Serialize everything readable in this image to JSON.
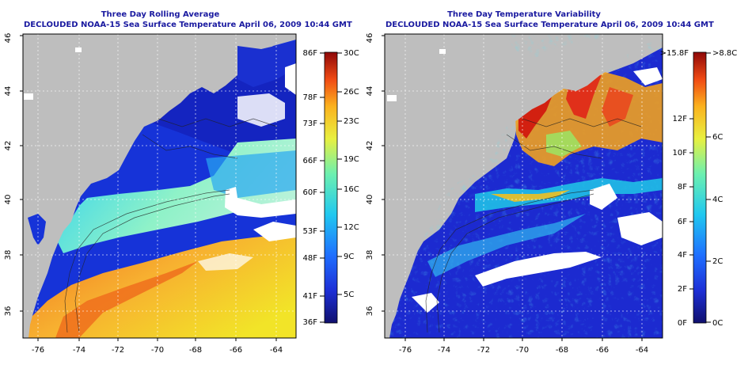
{
  "panels": [
    {
      "id": "left",
      "title": "Three Day Rolling Average",
      "subtitle": "DECLOUDED NOAA-15 Sea Surface Temperature April 06, 2009 10:44 GMT",
      "x_ticks": [
        "-76",
        "-74",
        "-72",
        "-70",
        "-68",
        "-66",
        "-64"
      ],
      "y_ticks": [
        "36",
        "38",
        "40",
        "42",
        "44",
        "46"
      ],
      "colorbar": {
        "left_labels": [
          "86F",
          "78F",
          "73F",
          "66F",
          "60F",
          "53F",
          "48F",
          "41F",
          "36F"
        ],
        "right_labels": [
          "30C",
          "26C",
          "23C",
          "19C",
          "16C",
          "12C",
          "9C",
          "5C"
        ]
      }
    },
    {
      "id": "right",
      "title": "Three Day Temperature Variability",
      "subtitle": "DECLOUDED NOAA-15 Sea Surface Temperature April 06, 2009 10:44 GMT",
      "x_ticks": [
        "-76",
        "-74",
        "-72",
        "-70",
        "-68",
        "-66",
        "-64"
      ],
      "y_ticks": [
        "36",
        "38",
        "40",
        "42",
        "44",
        "46"
      ],
      "colorbar": {
        "left_labels": [
          ">15.8F",
          "12F",
          "10F",
          "8F",
          "6F",
          "4F",
          "2F",
          "0F"
        ],
        "right_labels": [
          ">8.8C",
          "6C",
          "4C",
          "2C",
          "0C"
        ]
      }
    }
  ]
}
